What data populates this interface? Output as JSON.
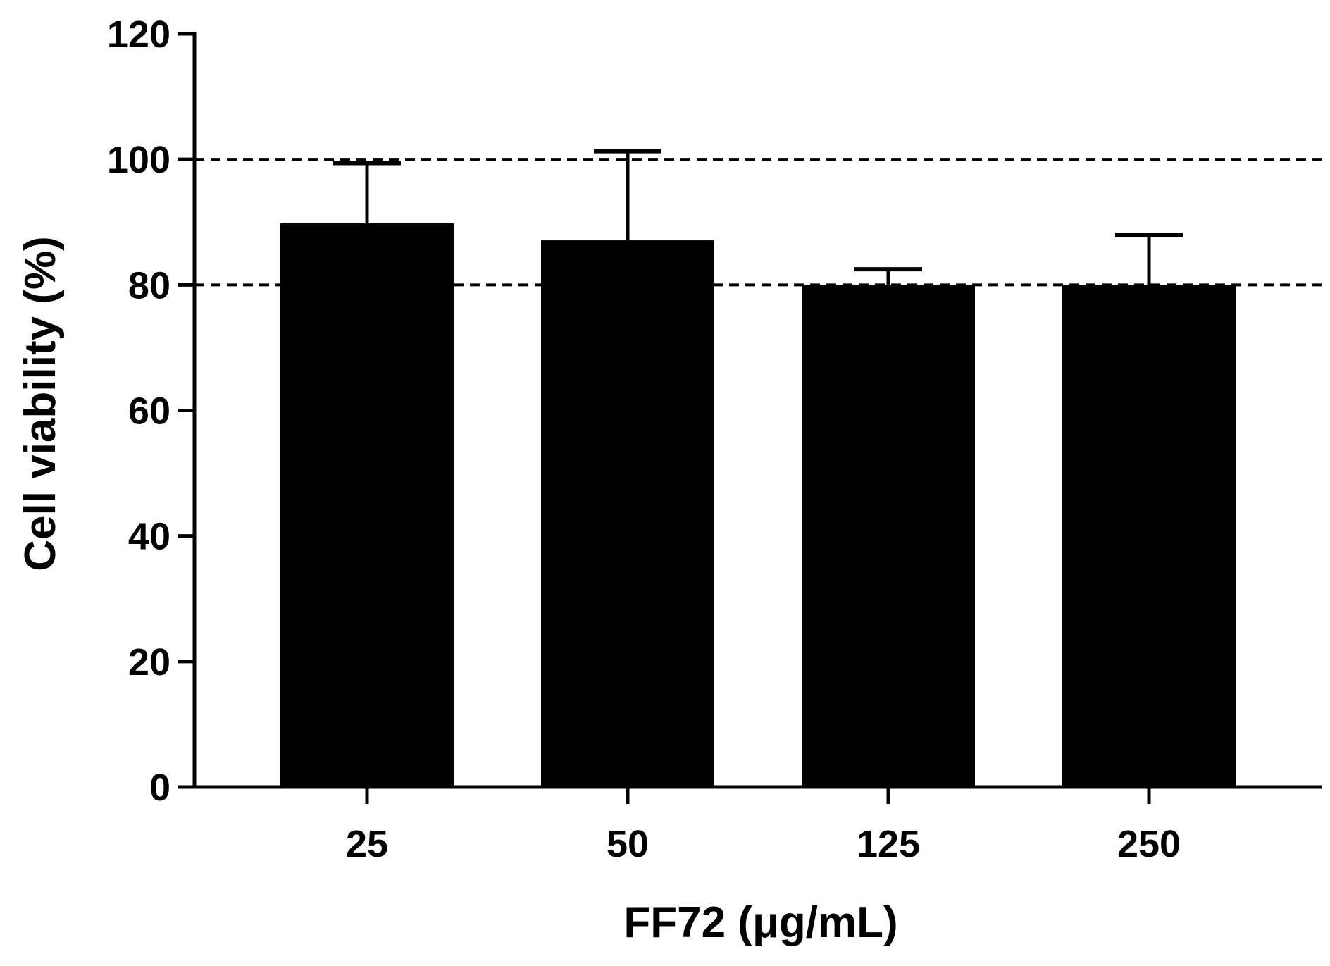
{
  "chart_data": {
    "type": "bar",
    "title": "",
    "xlabel": "FF72 (μg/mL)",
    "ylabel": "Cell viability (%)",
    "categories": [
      "25",
      "50",
      "125",
      "250"
    ],
    "values": [
      89.8,
      87.1,
      80.0,
      80.0
    ],
    "errors": [
      9.6,
      14.2,
      2.5,
      8.0
    ],
    "ylim": [
      0,
      120
    ],
    "yticks": [
      0,
      20,
      40,
      60,
      80,
      100,
      120
    ],
    "ytick_labels": [
      "0",
      "20",
      "40",
      "60",
      "80",
      "100",
      "120"
    ],
    "reference_lines": [
      100,
      80
    ],
    "bar_color": "#000000",
    "grid": false,
    "legend": "none"
  }
}
